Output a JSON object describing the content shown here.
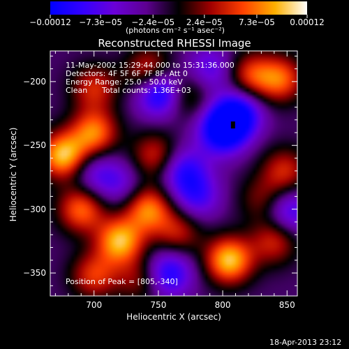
{
  "page": {
    "timestamp": "18-Apr-2013 23:12"
  },
  "chart_data": {
    "type": "heatmap",
    "title": "Reconstructed RHESSI Image",
    "xlabel": "Heliocentric X (arcsec)",
    "ylabel": "Heliocentric Y (arcsec)",
    "xlim": [
      666,
      858
    ],
    "ylim": [
      -368,
      -176
    ],
    "x_ticks": [
      700,
      750,
      800,
      850
    ],
    "y_ticks": [
      -200,
      -250,
      -300,
      -350
    ],
    "x_tick_labels": [
      "700",
      "750",
      "800",
      "850"
    ],
    "y_tick_labels": [
      "−200",
      "−250",
      "−300",
      "−350"
    ],
    "colorbar": {
      "range": [
        -0.00012,
        0.00012
      ],
      "tick_values": [
        -0.00012,
        -7.3e-05,
        -2.4e-05,
        2.4e-05,
        7.3e-05,
        0.00012
      ],
      "tick_labels": [
        "−0.00012",
        "−7.3e−05",
        "−2.4e−05",
        "2.4e−05",
        "7.3e−05",
        "0.00012"
      ],
      "unit_label": "(photons cm⁻² s⁻¹ asec⁻²)",
      "colors": [
        "#0000ff",
        "#3300ff",
        "#6a00d8",
        "#5d0090",
        "#000000",
        "#a00000",
        "#ff4000",
        "#ffb000",
        "#ffffff"
      ]
    },
    "annotations": {
      "time_range": "11-May-2002 15:29:44.000 to 15:31:36.000",
      "detectors": "Detectors: 4F 5F 6F 7F 8F, Att 0",
      "energy": "Energy Range: 25.0 - 50.0 keV",
      "method": "Clean",
      "total_counts": "Total counts: 1.36E+03",
      "peak": "Position of Peak = [805,-340]"
    },
    "peak": [
      805,
      -340
    ],
    "blobs": [
      {
        "x": 676,
        "y": -258,
        "v": 1.0
      },
      {
        "x": 700,
        "y": -240,
        "v": 0.8
      },
      {
        "x": 690,
        "y": -300,
        "v": 0.75
      },
      {
        "x": 720,
        "y": -325,
        "v": 0.95
      },
      {
        "x": 742,
        "y": -300,
        "v": 0.8
      },
      {
        "x": 747,
        "y": -258,
        "v": 0.55
      },
      {
        "x": 743,
        "y": -192,
        "v": 0.65
      },
      {
        "x": 770,
        "y": -210,
        "v": 0.5
      },
      {
        "x": 822,
        "y": -195,
        "v": 0.6
      },
      {
        "x": 845,
        "y": -198,
        "v": 0.7
      },
      {
        "x": 700,
        "y": -205,
        "v": 0.55
      },
      {
        "x": 805,
        "y": -340,
        "v": 1.0
      },
      {
        "x": 840,
        "y": -325,
        "v": 0.55
      },
      {
        "x": 848,
        "y": -270,
        "v": 0.55
      },
      {
        "x": 700,
        "y": -352,
        "v": 0.6
      },
      {
        "x": 765,
        "y": -318,
        "v": 0.5
      },
      {
        "x": 735,
        "y": -355,
        "v": 0.4
      },
      {
        "x": 830,
        "y": -292,
        "v": 0.35
      },
      {
        "x": 752,
        "y": -208,
        "v": -1.0
      },
      {
        "x": 800,
        "y": -238,
        "v": -1.0
      },
      {
        "x": 812,
        "y": -225,
        "v": -0.8
      },
      {
        "x": 770,
        "y": -270,
        "v": -0.6
      },
      {
        "x": 780,
        "y": -290,
        "v": -0.5
      },
      {
        "x": 758,
        "y": -350,
        "v": -0.7
      },
      {
        "x": 852,
        "y": -302,
        "v": -0.55
      },
      {
        "x": 720,
        "y": -280,
        "v": -0.35
      },
      {
        "x": 790,
        "y": -190,
        "v": -0.45
      },
      {
        "x": 700,
        "y": -272,
        "v": -0.4
      }
    ]
  }
}
